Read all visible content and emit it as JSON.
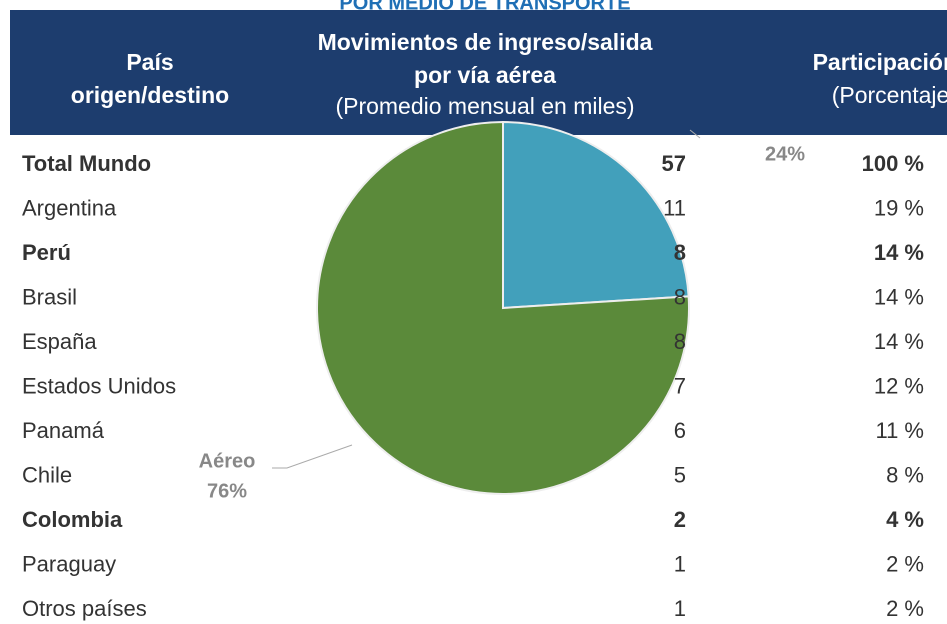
{
  "title": "POR MEDIO DE TRANSPORTE",
  "table": {
    "headers": [
      {
        "bold": "País origen/destino"
      },
      {
        "bold": "Movimientos de ingreso/salida por vía aérea",
        "normal": "(Promedio mensual en miles)"
      },
      {
        "bold": "Participación",
        "normal": "(Porcentaje)"
      }
    ],
    "bold_rows": [
      0,
      2,
      8
    ],
    "rows": [
      [
        "Total Mundo",
        "57",
        "100 %"
      ],
      [
        "Argentina",
        "11",
        "19 %"
      ],
      [
        "Perú",
        "8",
        "14 %"
      ],
      [
        "Brasil",
        "8",
        "14 %"
      ],
      [
        "España",
        "8",
        "14 %"
      ],
      [
        "Estados Unidos",
        "7",
        "12 %"
      ],
      [
        "Panamá",
        "6",
        "11 %"
      ],
      [
        "Chile",
        "5",
        "8 %"
      ],
      [
        "Colombia",
        "2",
        "4 %"
      ],
      [
        "Paraguay",
        "1",
        "2 %"
      ],
      [
        "Otros países",
        "1",
        "2 %"
      ]
    ]
  },
  "chart_data": {
    "type": "pie",
    "categories": [
      null,
      "Aéreo"
    ],
    "values": [
      24,
      76
    ],
    "value_labels": [
      "24%",
      "76%"
    ],
    "colors": [
      "#42a0bb",
      "#5b8a3a"
    ]
  }
}
